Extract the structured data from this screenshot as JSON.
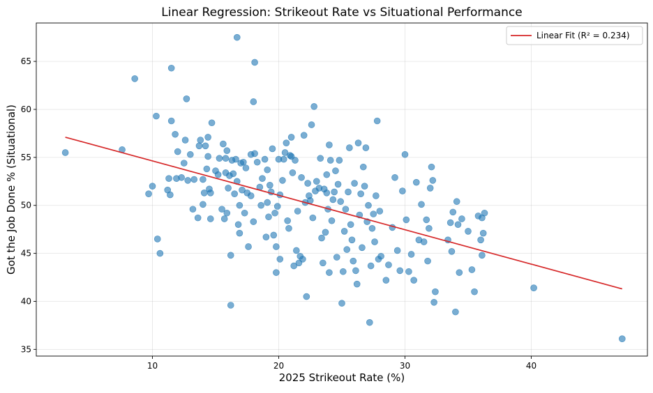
{
  "chart_data": {
    "type": "scatter",
    "title": "Linear Regression: Strikeout Rate vs Situational Performance",
    "xlabel": "2025 Strikeout Rate (%)",
    "ylabel": "Got the Job Done % (Situational)",
    "xlim": [
      0.8,
      49.2
    ],
    "ylim": [
      34.3,
      69.0
    ],
    "xticks": [
      10,
      20,
      30,
      40
    ],
    "yticks": [
      35,
      40,
      45,
      50,
      55,
      60,
      65
    ],
    "grid": true,
    "legend_position": "top-right",
    "legend": [
      {
        "label": "Linear Fit (R² = 0.234)",
        "color": "#d62728"
      }
    ],
    "point_color": "#1f77b4",
    "fit_line": {
      "name": "Linear Fit (R² = 0.234)",
      "color": "#d62728",
      "start": [
        3.1,
        57.1
      ],
      "end": [
        47.2,
        41.3
      ]
    },
    "series": [
      {
        "name": "Players",
        "points": [
          [
            3.1,
            55.5
          ],
          [
            7.6,
            55.8
          ],
          [
            8.6,
            63.2
          ],
          [
            9.7,
            51.2
          ],
          [
            10.0,
            52.0
          ],
          [
            10.3,
            59.3
          ],
          [
            10.4,
            46.5
          ],
          [
            10.6,
            45.0
          ],
          [
            11.2,
            51.6
          ],
          [
            11.3,
            52.8
          ],
          [
            11.4,
            51.1
          ],
          [
            11.5,
            64.3
          ],
          [
            11.5,
            58.8
          ],
          [
            11.8,
            57.4
          ],
          [
            11.9,
            52.8
          ],
          [
            12.0,
            55.6
          ],
          [
            12.3,
            52.9
          ],
          [
            12.5,
            54.4
          ],
          [
            12.6,
            56.8
          ],
          [
            12.7,
            61.1
          ],
          [
            12.8,
            52.6
          ],
          [
            13.0,
            55.3
          ],
          [
            13.2,
            49.6
          ],
          [
            13.3,
            52.7
          ],
          [
            13.6,
            48.7
          ],
          [
            13.7,
            56.2
          ],
          [
            13.8,
            56.8
          ],
          [
            14.0,
            50.1
          ],
          [
            14.0,
            52.7
          ],
          [
            14.1,
            51.3
          ],
          [
            14.2,
            56.2
          ],
          [
            14.3,
            53.8
          ],
          [
            14.4,
            57.1
          ],
          [
            14.4,
            55.1
          ],
          [
            14.5,
            51.7
          ],
          [
            14.6,
            51.3
          ],
          [
            14.6,
            48.6
          ],
          [
            14.7,
            58.6
          ],
          [
            15.0,
            53.6
          ],
          [
            15.2,
            53.2
          ],
          [
            15.3,
            54.9
          ],
          [
            15.5,
            49.6
          ],
          [
            15.6,
            56.4
          ],
          [
            15.7,
            48.6
          ],
          [
            15.8,
            54.9
          ],
          [
            15.8,
            53.4
          ],
          [
            15.9,
            55.7
          ],
          [
            15.9,
            49.2
          ],
          [
            16.0,
            51.8
          ],
          [
            16.1,
            53.1
          ],
          [
            16.2,
            39.6
          ],
          [
            16.2,
            44.8
          ],
          [
            16.3,
            54.7
          ],
          [
            16.4,
            53.3
          ],
          [
            16.5,
            51.2
          ],
          [
            16.6,
            54.8
          ],
          [
            16.7,
            52.5
          ],
          [
            16.7,
            67.5
          ],
          [
            16.8,
            48.0
          ],
          [
            16.9,
            50.0
          ],
          [
            16.9,
            47.1
          ],
          [
            17.0,
            54.4
          ],
          [
            17.1,
            51.6
          ],
          [
            17.2,
            54.5
          ],
          [
            17.3,
            49.2
          ],
          [
            17.4,
            53.9
          ],
          [
            17.5,
            51.3
          ],
          [
            17.6,
            45.7
          ],
          [
            17.8,
            51.0
          ],
          [
            17.8,
            55.3
          ],
          [
            18.0,
            48.3
          ],
          [
            18.0,
            60.8
          ],
          [
            18.1,
            55.4
          ],
          [
            18.1,
            64.9
          ],
          [
            18.3,
            54.5
          ],
          [
            18.5,
            51.9
          ],
          [
            18.6,
            50.0
          ],
          [
            18.7,
            52.8
          ],
          [
            18.9,
            54.8
          ],
          [
            19.0,
            46.7
          ],
          [
            19.1,
            50.3
          ],
          [
            19.1,
            53.7
          ],
          [
            19.2,
            48.8
          ],
          [
            19.3,
            52.1
          ],
          [
            19.4,
            51.4
          ],
          [
            19.5,
            55.9
          ],
          [
            19.6,
            46.9
          ],
          [
            19.7,
            49.2
          ],
          [
            19.8,
            45.7
          ],
          [
            19.8,
            43.0
          ],
          [
            19.9,
            49.9
          ],
          [
            20.0,
            54.8
          ],
          [
            20.1,
            44.4
          ],
          [
            20.1,
            51.1
          ],
          [
            20.3,
            52.6
          ],
          [
            20.4,
            54.8
          ],
          [
            20.5,
            55.5
          ],
          [
            20.6,
            56.5
          ],
          [
            20.7,
            48.4
          ],
          [
            20.8,
            47.6
          ],
          [
            20.9,
            55.2
          ],
          [
            21.0,
            55.1
          ],
          [
            21.0,
            57.1
          ],
          [
            21.1,
            53.4
          ],
          [
            21.2,
            43.7
          ],
          [
            21.3,
            54.7
          ],
          [
            21.4,
            45.3
          ],
          [
            21.5,
            49.4
          ],
          [
            21.6,
            44.0
          ],
          [
            21.7,
            44.7
          ],
          [
            21.8,
            52.9
          ],
          [
            21.9,
            44.4
          ],
          [
            22.0,
            57.3
          ],
          [
            22.1,
            50.3
          ],
          [
            22.2,
            40.5
          ],
          [
            22.3,
            52.3
          ],
          [
            22.4,
            51.0
          ],
          [
            22.5,
            50.5
          ],
          [
            22.6,
            58.4
          ],
          [
            22.7,
            48.7
          ],
          [
            22.8,
            60.3
          ],
          [
            22.9,
            51.5
          ],
          [
            23.0,
            52.5
          ],
          [
            23.2,
            51.8
          ],
          [
            23.3,
            54.9
          ],
          [
            23.4,
            46.6
          ],
          [
            23.5,
            44.0
          ],
          [
            23.6,
            51.7
          ],
          [
            23.7,
            47.2
          ],
          [
            23.8,
            53.2
          ],
          [
            23.8,
            51.3
          ],
          [
            23.9,
            49.6
          ],
          [
            24.0,
            56.3
          ],
          [
            24.0,
            43.0
          ],
          [
            24.1,
            54.7
          ],
          [
            24.2,
            48.4
          ],
          [
            24.3,
            50.6
          ],
          [
            24.4,
            51.4
          ],
          [
            24.5,
            53.6
          ],
          [
            24.6,
            44.6
          ],
          [
            24.7,
            52.2
          ],
          [
            24.8,
            54.7
          ],
          [
            24.9,
            50.4
          ],
          [
            25.0,
            39.8
          ],
          [
            25.1,
            43.1
          ],
          [
            25.2,
            47.3
          ],
          [
            25.3,
            49.6
          ],
          [
            25.4,
            45.4
          ],
          [
            25.5,
            51.4
          ],
          [
            25.6,
            56.0
          ],
          [
            25.7,
            48.0
          ],
          [
            25.8,
            46.4
          ],
          [
            25.9,
            44.2
          ],
          [
            26.0,
            52.3
          ],
          [
            26.1,
            43.2
          ],
          [
            26.2,
            41.8
          ],
          [
            26.3,
            56.5
          ],
          [
            26.4,
            49.0
          ],
          [
            26.5,
            51.2
          ],
          [
            26.6,
            45.6
          ],
          [
            26.7,
            54.0
          ],
          [
            26.8,
            52.0
          ],
          [
            26.9,
            56.0
          ],
          [
            27.0,
            48.3
          ],
          [
            27.1,
            50.0
          ],
          [
            27.2,
            37.8
          ],
          [
            27.3,
            43.7
          ],
          [
            27.4,
            47.6
          ],
          [
            27.5,
            49.1
          ],
          [
            27.6,
            46.2
          ],
          [
            27.7,
            51.0
          ],
          [
            27.8,
            58.8
          ],
          [
            27.9,
            44.4
          ],
          [
            28.0,
            49.4
          ],
          [
            28.1,
            44.7
          ],
          [
            28.5,
            42.2
          ],
          [
            28.7,
            43.8
          ],
          [
            29.0,
            47.7
          ],
          [
            29.2,
            52.9
          ],
          [
            29.4,
            45.3
          ],
          [
            29.6,
            43.2
          ],
          [
            29.8,
            51.5
          ],
          [
            30.0,
            55.3
          ],
          [
            30.1,
            48.5
          ],
          [
            30.3,
            43.1
          ],
          [
            30.5,
            44.9
          ],
          [
            30.7,
            42.2
          ],
          [
            30.9,
            52.4
          ],
          [
            31.1,
            46.4
          ],
          [
            31.3,
            50.1
          ],
          [
            31.5,
            46.2
          ],
          [
            31.7,
            48.5
          ],
          [
            31.8,
            44.2
          ],
          [
            31.9,
            47.6
          ],
          [
            32.0,
            51.8
          ],
          [
            32.1,
            54.0
          ],
          [
            32.2,
            52.6
          ],
          [
            32.3,
            39.9
          ],
          [
            32.4,
            41.0
          ],
          [
            33.4,
            46.4
          ],
          [
            33.6,
            48.2
          ],
          [
            33.7,
            45.2
          ],
          [
            33.8,
            49.3
          ],
          [
            34.0,
            38.9
          ],
          [
            34.1,
            50.4
          ],
          [
            34.2,
            48.0
          ],
          [
            34.3,
            43.0
          ],
          [
            34.5,
            48.6
          ],
          [
            35.0,
            47.3
          ],
          [
            35.3,
            43.3
          ],
          [
            35.5,
            41.0
          ],
          [
            35.8,
            48.9
          ],
          [
            36.0,
            46.4
          ],
          [
            36.1,
            48.7
          ],
          [
            36.1,
            44.8
          ],
          [
            36.2,
            47.1
          ],
          [
            36.3,
            49.2
          ],
          [
            40.2,
            41.4
          ],
          [
            47.2,
            36.1
          ]
        ]
      }
    ]
  }
}
